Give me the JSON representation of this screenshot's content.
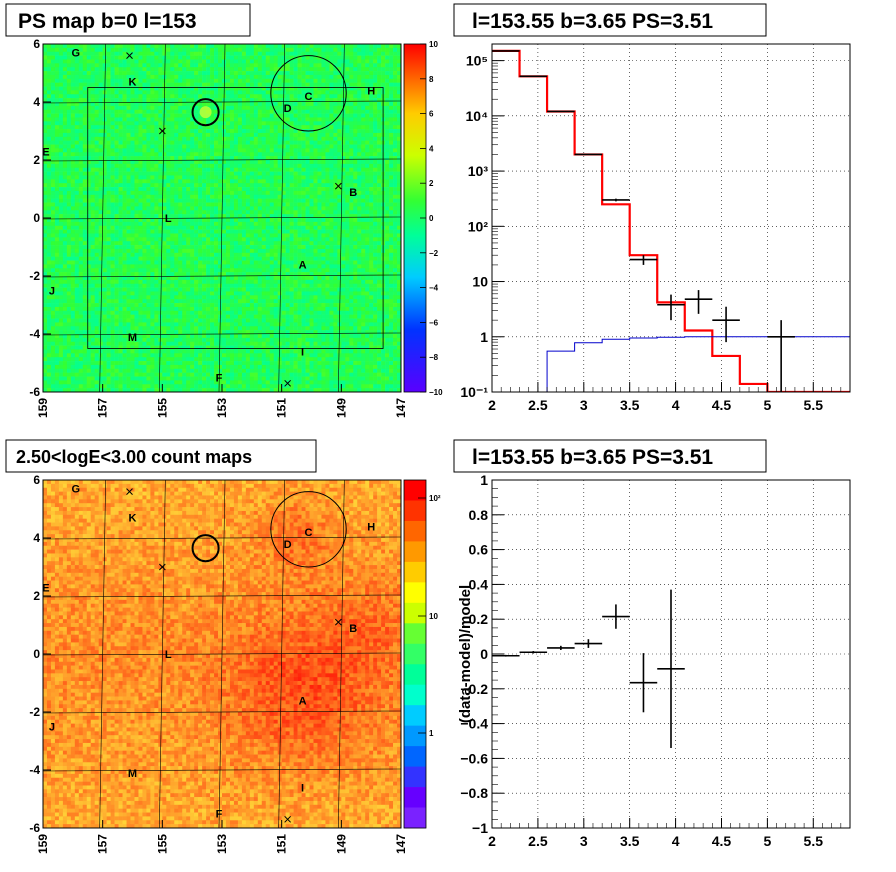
{
  "panels": {
    "ps_map": {
      "title": "PS map b=0 l=153",
      "x_ticks": [
        "159",
        "157",
        "155",
        "153",
        "151",
        "149",
        "147"
      ],
      "y_ticks": [
        "6",
        "4",
        "2",
        "0",
        "-2",
        "-4",
        "-6"
      ],
      "colorbar_ticks": [
        "10",
        "8",
        "6",
        "4",
        "2",
        "0",
        "−2",
        "−4",
        "−6",
        "−8",
        "−10"
      ],
      "source_labels": [
        "G",
        "K",
        "H",
        "C",
        "D",
        "E",
        "B",
        "L",
        "A",
        "J",
        "M",
        "I",
        "F"
      ]
    },
    "count_map": {
      "title": "2.50<logE<3.00 count maps",
      "x_ticks": [
        "159",
        "157",
        "155",
        "153",
        "151",
        "149",
        "147"
      ],
      "y_ticks": [
        "6",
        "4",
        "2",
        "0",
        "-2",
        "-4",
        "-6"
      ],
      "colorbar_ticks": [
        "10²",
        "10",
        "1"
      ],
      "source_labels": [
        "G",
        "K",
        "H",
        "C",
        "D",
        "E",
        "B",
        "L",
        "A",
        "J",
        "M",
        "I",
        "F"
      ]
    },
    "spectrum": {
      "title": "l=153.55 b=3.65 PS=3.51",
      "x_ticks": [
        "2",
        "2.5",
        "3",
        "3.5",
        "4",
        "4.5",
        "5",
        "5.5"
      ],
      "y_ticks": [
        "10⁵",
        "10⁴",
        "10³",
        "10²",
        "10",
        "1",
        "10⁻¹"
      ]
    },
    "residual": {
      "title": "l=153.55 b=3.65 PS=3.51",
      "ylabel": "(data-model)/model",
      "x_ticks": [
        "2",
        "2.5",
        "3",
        "3.5",
        "4",
        "4.5",
        "5",
        "5.5"
      ],
      "y_ticks": [
        "1",
        "0.8",
        "0.6",
        "0.4",
        "0.2",
        "0",
        "−0.2",
        "−0.4",
        "−0.6",
        "−0.8",
        "−1"
      ]
    }
  },
  "chart_data": [
    {
      "type": "heatmap",
      "title": "PS map b=0 l=153",
      "xlim": [
        159,
        147
      ],
      "ylim": [
        -6,
        6
      ],
      "zlim": [
        -10,
        10
      ],
      "colors": {
        "low": "#5a00ff",
        "mid": "#33ff33",
        "high": "#ff0000"
      },
      "sources": [
        {
          "name": "G",
          "l": 157.9,
          "b": 5.7
        },
        {
          "name": "K",
          "l": 156.0,
          "b": 4.7
        },
        {
          "name": "H",
          "l": 148.0,
          "b": 4.4
        },
        {
          "name": "C",
          "l": 150.1,
          "b": 4.2
        },
        {
          "name": "D",
          "l": 150.8,
          "b": 3.8
        },
        {
          "name": "E",
          "l": 158.9,
          "b": 2.3
        },
        {
          "name": "B",
          "l": 148.6,
          "b": 0.9
        },
        {
          "name": "L",
          "l": 154.8,
          "b": 0.0
        },
        {
          "name": "A",
          "l": 150.3,
          "b": -1.6
        },
        {
          "name": "J",
          "l": 158.7,
          "b": -2.5
        },
        {
          "name": "M",
          "l": 156.0,
          "b": -4.1
        },
        {
          "name": "I",
          "l": 150.3,
          "b": -4.6
        },
        {
          "name": "F",
          "l": 153.1,
          "b": -5.5
        }
      ],
      "crosses": [
        {
          "l": 156.1,
          "b": 5.6
        },
        {
          "l": 155.0,
          "b": 3.0
        },
        {
          "l": 149.1,
          "b": 1.1
        },
        {
          "l": 150.8,
          "b": -5.7
        }
      ],
      "circles": [
        {
          "l": 153.55,
          "b": 3.65,
          "r": 0.45
        },
        {
          "l": 150.1,
          "b": 4.3,
          "r": 1.3
        }
      ],
      "frame": {
        "l_min": 147.6,
        "l_max": 157.5,
        "b_min": -4.5,
        "b_max": 4.5
      }
    },
    {
      "type": "heatmap",
      "title": "2.50<logE<3.00 count maps",
      "xlim": [
        159,
        147
      ],
      "ylim": [
        -6,
        6
      ],
      "zscale": "log",
      "zlim": [
        0.4,
        200
      ],
      "sources": "same as PS map",
      "circles": [
        {
          "l": 153.55,
          "b": 3.65,
          "r": 0.45
        },
        {
          "l": 150.1,
          "b": 4.3,
          "r": 1.3
        }
      ]
    },
    {
      "type": "line",
      "title": "l=153.55 b=3.65 PS=3.51",
      "xlim": [
        2.0,
        5.9
      ],
      "ylim": [
        0.1,
        200000
      ],
      "yscale": "log",
      "grid": true,
      "series": [
        {
          "color": "#ff0000",
          "style": "step",
          "edges": [
            2.0,
            2.3,
            2.6,
            2.9,
            3.2,
            3.5,
            3.8,
            4.1,
            4.4,
            4.7,
            5.0,
            5.3,
            5.9
          ],
          "values": [
            150000,
            52000,
            12000,
            2000,
            250,
            30,
            4.2,
            1.3,
            0.45,
            0.14,
            0.1,
            0.1
          ]
        },
        {
          "color": "#0000cc",
          "style": "step",
          "edges": [
            2.0,
            2.6,
            2.9,
            3.2,
            3.5,
            3.8,
            4.1,
            4.4,
            4.7,
            5.0,
            5.3,
            5.9
          ],
          "values": [
            0.05,
            0.55,
            0.78,
            0.9,
            0.95,
            0.98,
            1.0,
            1.0,
            1.0,
            1.0,
            1.0
          ]
        }
      ],
      "points": [
        {
          "x": 2.15,
          "y": 150000,
          "xerr": 0.15,
          "yerr_lo": 400,
          "yerr_hi": 400
        },
        {
          "x": 2.45,
          "y": 52000,
          "xerr": 0.15,
          "yerr_lo": 230,
          "yerr_hi": 230
        },
        {
          "x": 2.75,
          "y": 12000,
          "xerr": 0.15,
          "yerr_lo": 110,
          "yerr_hi": 110
        },
        {
          "x": 3.05,
          "y": 2000,
          "xerr": 0.15,
          "yerr_lo": 45,
          "yerr_hi": 45
        },
        {
          "x": 3.35,
          "y": 300,
          "xerr": 0.15,
          "yerr_lo": 17,
          "yerr_hi": 17
        },
        {
          "x": 3.65,
          "y": 25,
          "xerr": 0.15,
          "yerr_lo": 5,
          "yerr_hi": 5
        },
        {
          "x": 3.95,
          "y": 3.8,
          "xerr": 0.15,
          "yerr_lo": 1.8,
          "yerr_hi": 2.0
        },
        {
          "x": 4.25,
          "y": 4.8,
          "xerr": 0.15,
          "yerr_lo": 2.2,
          "yerr_hi": 2.2
        },
        {
          "x": 4.55,
          "y": 2.0,
          "xerr": 0.15,
          "yerr_lo": 1.2,
          "yerr_hi": 1.5
        },
        {
          "x": 5.15,
          "y": 1.0,
          "xerr": 0.15,
          "yerr_lo": 0.9,
          "yerr_hi": 1.0
        }
      ]
    },
    {
      "type": "scatter",
      "title": "l=153.55 b=3.65 PS=3.51",
      "ylabel": "(data-model)/model",
      "xlim": [
        2.0,
        5.9
      ],
      "ylim": [
        -1,
        1
      ],
      "grid": true,
      "points": [
        {
          "x": 2.15,
          "y": -0.01,
          "xerr": 0.15,
          "yerr": 0.005
        },
        {
          "x": 2.45,
          "y": 0.01,
          "xerr": 0.15,
          "yerr": 0.007
        },
        {
          "x": 2.75,
          "y": 0.035,
          "xerr": 0.15,
          "yerr": 0.012
        },
        {
          "x": 3.05,
          "y": 0.06,
          "xerr": 0.15,
          "yerr": 0.025
        },
        {
          "x": 3.35,
          "y": 0.215,
          "xerr": 0.15,
          "yerr": 0.07
        },
        {
          "x": 3.65,
          "y": -0.165,
          "xerr": 0.15,
          "yerr": 0.17
        },
        {
          "x": 3.95,
          "y": -0.085,
          "xerr": 0.15,
          "yerr": 0.455
        }
      ]
    }
  ]
}
